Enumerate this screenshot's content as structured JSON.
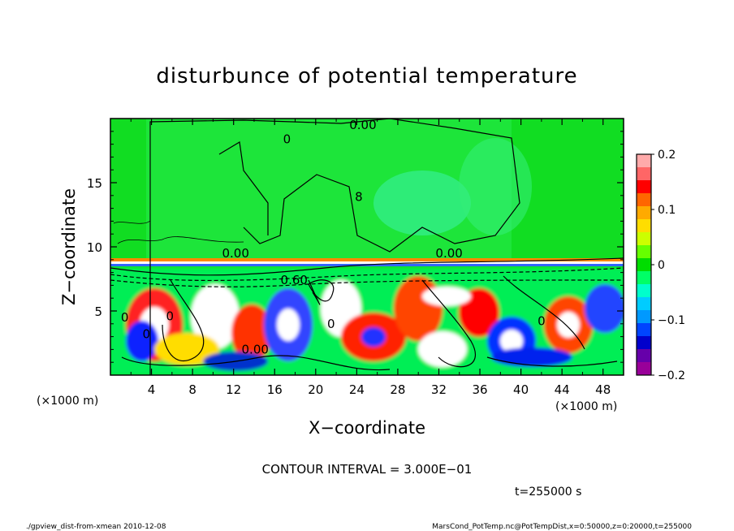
{
  "chart_data": {
    "type": "heatmap",
    "title": "disturbunce of potential temperature",
    "xlabel": "X−coordinate",
    "ylabel": "Z−coordinate",
    "x_unit_left": "(×1000 m)",
    "x_unit_right": "(×1000 m)",
    "xlim": [
      0,
      50
    ],
    "ylim": [
      0,
      20
    ],
    "x_ticks": [
      "4",
      "8",
      "12",
      "16",
      "20",
      "24",
      "28",
      "32",
      "36",
      "40",
      "44",
      "48"
    ],
    "x_tick_values": [
      4,
      8,
      12,
      16,
      20,
      24,
      28,
      32,
      36,
      40,
      44,
      48
    ],
    "y_ticks": [
      "5",
      "10",
      "15"
    ],
    "y_tick_values": [
      5,
      10,
      15
    ],
    "colorbar": {
      "ticks": [
        "0.2",
        "0.1",
        "0",
        "−0.1",
        "−0.2"
      ],
      "tick_values": [
        0.2,
        0.1,
        0,
        -0.1,
        -0.2
      ],
      "range": [
        -0.2,
        0.2
      ],
      "colors": [
        "#ffaaaa",
        "#ff6666",
        "#ff0000",
        "#ff6600",
        "#ffaa00",
        "#ffdd00",
        "#ccff00",
        "#66ff00",
        "#00dd00",
        "#00ff66",
        "#00ffcc",
        "#00ccff",
        "#0099ff",
        "#0044ff",
        "#0000cc",
        "#6600aa",
        "#990099"
      ]
    },
    "contour_labels": [
      {
        "text": "0.00",
        "x": 24.6,
        "z": 19.5
      },
      {
        "text": "0",
        "x": 17.2,
        "z": 18.4
      },
      {
        "text": "8",
        "x": 24.2,
        "z": 13.9
      },
      {
        "text": "0.00",
        "x": 12.2,
        "z": 9.5
      },
      {
        "text": "0.00",
        "x": 33.0,
        "z": 9.5
      },
      {
        "text": "0.60",
        "x": 17.9,
        "z": 7.4
      },
      {
        "text": "0.00",
        "x": 14.1,
        "z": 2.0
      },
      {
        "text": "0",
        "x": 1.4,
        "z": 4.5
      },
      {
        "text": "0",
        "x": 5.8,
        "z": 4.6
      },
      {
        "text": "0",
        "x": 3.5,
        "z": 3.2
      },
      {
        "text": "0",
        "x": 21.5,
        "z": 4.0
      },
      {
        "text": "0",
        "x": 42.0,
        "z": 4.2
      }
    ],
    "contour_interval_text": "CONTOUR INTERVAL = 3.000E−01",
    "time_text": "t=255000 s"
  },
  "footer": {
    "left": "./gpview_dist-from-xmean  2010-12-08",
    "right": "MarsCond_PotTemp.nc@PotTempDist,x=0:50000,z=0:20000,t=255000"
  },
  "colors": {
    "green": "#00dd00",
    "lightgreen": "#33ff66"
  }
}
